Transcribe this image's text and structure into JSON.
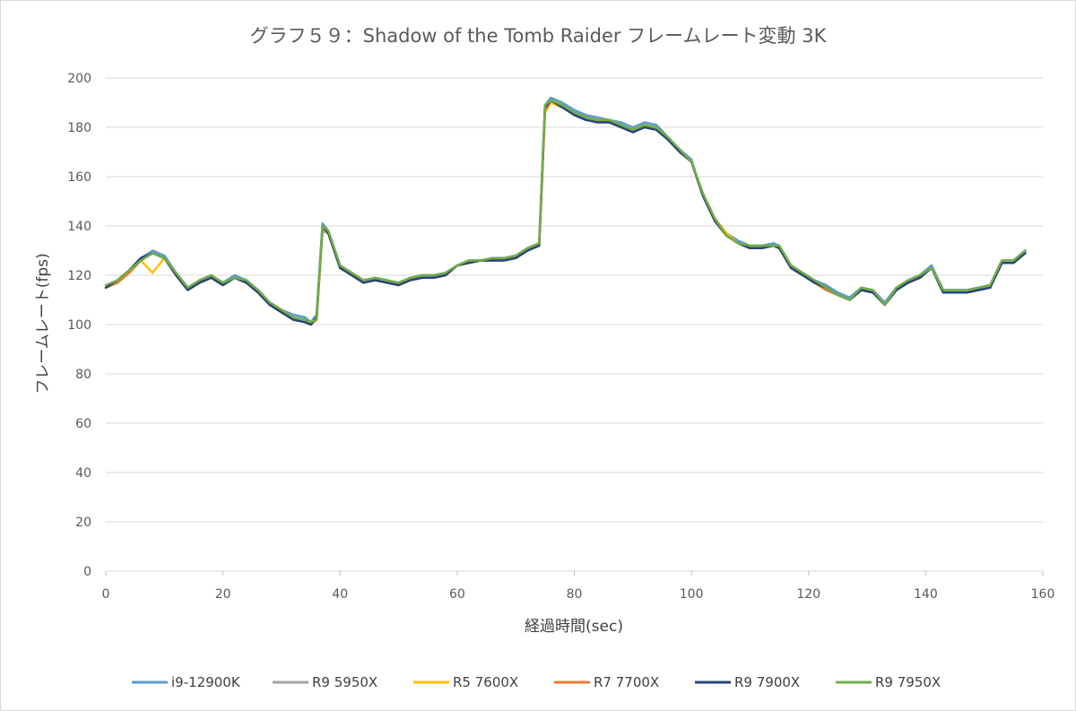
{
  "chart_data": {
    "type": "line",
    "title": "グラフ５９：Shadow of the Tomb Raider フレームレート変動 3K",
    "xlabel": "経過時間(sec)",
    "ylabel": "フレームレート(fps)",
    "xlim": [
      0,
      160
    ],
    "ylim": [
      0,
      200
    ],
    "x_ticks": [
      0,
      20,
      40,
      60,
      80,
      100,
      120,
      140,
      160
    ],
    "y_ticks": [
      0,
      20,
      40,
      60,
      80,
      100,
      120,
      140,
      160,
      180,
      200
    ],
    "grid": "horizontal",
    "legend_position": "bottom",
    "x": [
      0,
      2,
      4,
      6,
      8,
      10,
      12,
      14,
      16,
      18,
      20,
      22,
      24,
      26,
      28,
      30,
      32,
      34,
      35,
      36,
      37,
      38,
      40,
      42,
      44,
      46,
      48,
      50,
      52,
      54,
      56,
      58,
      60,
      62,
      64,
      66,
      68,
      70,
      72,
      74,
      75,
      76,
      78,
      80,
      82,
      84,
      86,
      88,
      90,
      92,
      94,
      96,
      98,
      100,
      102,
      104,
      106,
      108,
      110,
      112,
      114,
      115,
      117,
      119,
      121,
      123,
      125,
      127,
      129,
      131,
      133,
      135,
      137,
      139,
      141,
      143,
      145,
      147,
      149,
      151,
      153,
      155,
      157
    ],
    "series": [
      {
        "name": "i9-12900K",
        "color": "#5b9bd5",
        "values": [
          115,
          118,
          122,
          127,
          130,
          128,
          121,
          115,
          118,
          120,
          117,
          120,
          118,
          114,
          109,
          106,
          104,
          103,
          101,
          104,
          141,
          138,
          124,
          121,
          118,
          119,
          118,
          117,
          119,
          120,
          120,
          121,
          124,
          126,
          126,
          127,
          127,
          128,
          131,
          133,
          189,
          192,
          190,
          187,
          185,
          184,
          183,
          182,
          180,
          182,
          181,
          176,
          171,
          167,
          152,
          143,
          137,
          134,
          132,
          132,
          133,
          132,
          124,
          121,
          118,
          116,
          113,
          111,
          115,
          114,
          109,
          115,
          118,
          120,
          124,
          114,
          114,
          114,
          115,
          116,
          126,
          126,
          130
        ]
      },
      {
        "name": "R9 5950X",
        "color": "#a5a5a5",
        "values": [
          115,
          117,
          121,
          126,
          129,
          127,
          120,
          114,
          117,
          119,
          116,
          119,
          117,
          113,
          108,
          105,
          102,
          101,
          100,
          102,
          138,
          137,
          123,
          120,
          117,
          118,
          117,
          116,
          118,
          119,
          119,
          120,
          124,
          125,
          126,
          126,
          126,
          127,
          130,
          132,
          187,
          191,
          188,
          186,
          184,
          183,
          182,
          180,
          179,
          181,
          180,
          175,
          170,
          166,
          152,
          142,
          136,
          133,
          131,
          131,
          132,
          131,
          123,
          120,
          117,
          114,
          112,
          110,
          114,
          113,
          108,
          114,
          117,
          119,
          123,
          113,
          113,
          113,
          114,
          115,
          125,
          125,
          129
        ]
      },
      {
        "name": "R5 7600X",
        "color": "#ffc000",
        "values": [
          115,
          118,
          121,
          126,
          121,
          127,
          120,
          114,
          117,
          119,
          116,
          119,
          117,
          113,
          108,
          105,
          102,
          101,
          100,
          102,
          139,
          137,
          123,
          120,
          117,
          118,
          117,
          116,
          118,
          119,
          119,
          120,
          124,
          125,
          126,
          126,
          126,
          127,
          130,
          132,
          186,
          190,
          188,
          186,
          184,
          183,
          182,
          180,
          179,
          181,
          180,
          175,
          170,
          166,
          153,
          143,
          137,
          133,
          131,
          131,
          132,
          131,
          123,
          120,
          117,
          114,
          112,
          110,
          114,
          113,
          108,
          114,
          117,
          119,
          123,
          113,
          113,
          113,
          114,
          115,
          125,
          125,
          129
        ]
      },
      {
        "name": "R7 7700X",
        "color": "#ed7d31",
        "values": [
          115,
          117,
          121,
          126,
          129,
          127,
          120,
          114,
          117,
          119,
          116,
          119,
          117,
          113,
          108,
          105,
          102,
          101,
          100,
          102,
          139,
          137,
          123,
          120,
          117,
          118,
          117,
          116,
          118,
          119,
          119,
          120,
          124,
          125,
          126,
          126,
          126,
          127,
          130,
          132,
          187,
          191,
          188,
          186,
          184,
          183,
          182,
          180,
          179,
          181,
          180,
          175,
          170,
          166,
          152,
          142,
          136,
          133,
          131,
          131,
          132,
          131,
          123,
          120,
          117,
          114,
          112,
          110,
          114,
          113,
          108,
          114,
          117,
          119,
          123,
          113,
          113,
          113,
          114,
          115,
          125,
          125,
          129
        ]
      },
      {
        "name": "R9 7900X",
        "color": "#264478",
        "values": [
          115,
          118,
          122,
          127,
          129,
          127,
          120,
          114,
          117,
          119,
          116,
          119,
          117,
          113,
          108,
          105,
          102,
          101,
          100,
          103,
          140,
          137,
          123,
          120,
          117,
          118,
          117,
          116,
          118,
          119,
          119,
          120,
          124,
          125,
          126,
          126,
          126,
          127,
          130,
          132,
          188,
          191,
          188,
          185,
          183,
          182,
          182,
          180,
          178,
          180,
          179,
          175,
          170,
          166,
          152,
          142,
          136,
          133,
          131,
          131,
          132,
          131,
          123,
          120,
          117,
          115,
          112,
          110,
          114,
          113,
          108,
          114,
          117,
          119,
          123,
          113,
          113,
          113,
          114,
          115,
          125,
          125,
          129
        ]
      },
      {
        "name": "R9 7950X",
        "color": "#70ad47",
        "values": [
          116,
          118,
          122,
          126,
          129,
          127,
          121,
          115,
          118,
          120,
          117,
          119,
          118,
          114,
          109,
          106,
          103,
          102,
          101,
          102,
          140,
          138,
          124,
          121,
          118,
          119,
          118,
          117,
          119,
          120,
          120,
          121,
          124,
          126,
          126,
          127,
          127,
          128,
          131,
          133,
          189,
          191,
          189,
          186,
          184,
          183,
          183,
          181,
          179,
          181,
          180,
          176,
          171,
          166,
          153,
          143,
          136,
          133,
          132,
          132,
          132,
          132,
          124,
          121,
          118,
          115,
          112,
          110,
          115,
          114,
          108,
          115,
          118,
          120,
          123,
          114,
          114,
          114,
          115,
          116,
          126,
          126,
          130
        ]
      }
    ]
  }
}
